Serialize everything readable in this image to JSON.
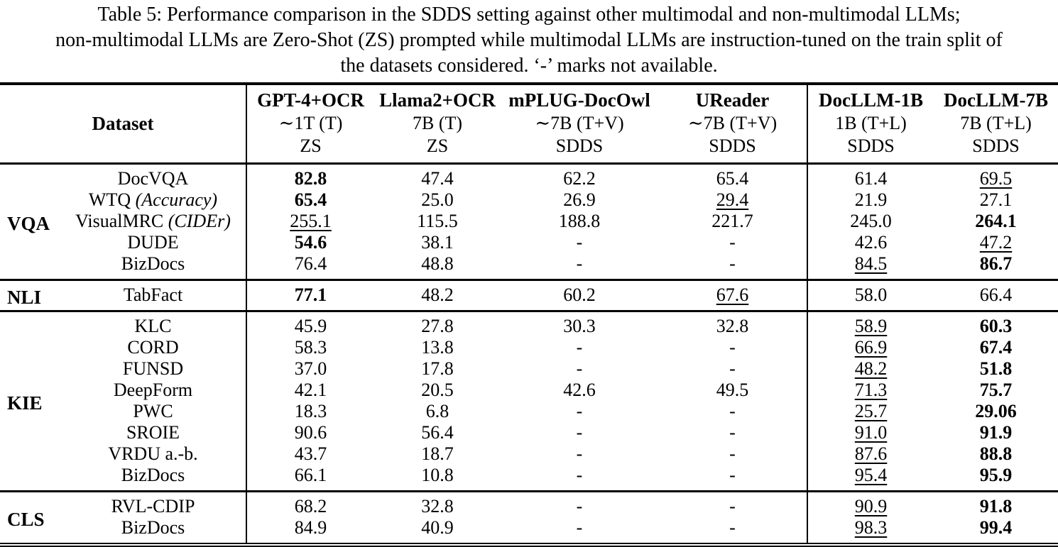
{
  "caption": {
    "lines": [
      "Table 5: Performance comparison in the SDDS setting against other multimodal and non-multimodal LLMs;",
      "non-multimodal LLMs are Zero-Shot (ZS) prompted while multimodal LLMs are instruction-tuned on the train split of",
      "the datasets considered. ‘-’ marks not available."
    ]
  },
  "colors": {
    "text": "#000000",
    "background": "#ffffff",
    "rule": "#000000"
  },
  "table": {
    "dataset_header": "Dataset",
    "columns": [
      {
        "model": "GPT-4+OCR",
        "params": "∼1T (T)",
        "setting": "ZS"
      },
      {
        "model": "Llama2+OCR",
        "params": "7B (T)",
        "setting": "ZS"
      },
      {
        "model": "mPLUG-DocOwl",
        "params": "∼7B (T+V)",
        "setting": "SDDS"
      },
      {
        "model": "UReader",
        "params": "∼7B (T+V)",
        "setting": "SDDS"
      },
      {
        "model": "DocLLM-1B",
        "params": "1B (T+L)",
        "setting": "SDDS"
      },
      {
        "model": "DocLLM-7B",
        "params": "7B (T+L)",
        "setting": "SDDS"
      }
    ],
    "sections": [
      {
        "group": "VQA",
        "rows": [
          {
            "dataset": "DocVQA",
            "note": "",
            "values": [
              {
                "v": "82.8",
                "f": "b"
              },
              {
                "v": "47.4",
                "f": ""
              },
              {
                "v": "62.2",
                "f": ""
              },
              {
                "v": "65.4",
                "f": ""
              },
              {
                "v": "61.4",
                "f": ""
              },
              {
                "v": "69.5",
                "f": "u"
              }
            ]
          },
          {
            "dataset": "WTQ",
            "note": "(Accuracy)",
            "values": [
              {
                "v": "65.4",
                "f": "b"
              },
              {
                "v": "25.0",
                "f": ""
              },
              {
                "v": "26.9",
                "f": ""
              },
              {
                "v": "29.4",
                "f": "u"
              },
              {
                "v": "21.9",
                "f": ""
              },
              {
                "v": "27.1",
                "f": ""
              }
            ]
          },
          {
            "dataset": "VisualMRC",
            "note": "(CIDEr)",
            "values": [
              {
                "v": "255.1",
                "f": "u"
              },
              {
                "v": "115.5",
                "f": ""
              },
              {
                "v": "188.8",
                "f": ""
              },
              {
                "v": "221.7",
                "f": ""
              },
              {
                "v": "245.0",
                "f": ""
              },
              {
                "v": "264.1",
                "f": "b"
              }
            ]
          },
          {
            "dataset": "DUDE",
            "note": "",
            "values": [
              {
                "v": "54.6",
                "f": "b"
              },
              {
                "v": "38.1",
                "f": ""
              },
              {
                "v": "-",
                "f": ""
              },
              {
                "v": "-",
                "f": ""
              },
              {
                "v": "42.6",
                "f": ""
              },
              {
                "v": "47.2",
                "f": "u"
              }
            ]
          },
          {
            "dataset": "BizDocs",
            "note": "",
            "values": [
              {
                "v": "76.4",
                "f": ""
              },
              {
                "v": "48.8",
                "f": ""
              },
              {
                "v": "-",
                "f": ""
              },
              {
                "v": "-",
                "f": ""
              },
              {
                "v": "84.5",
                "f": "u"
              },
              {
                "v": "86.7",
                "f": "b"
              }
            ]
          }
        ]
      },
      {
        "group": "NLI",
        "rows": [
          {
            "dataset": "TabFact",
            "note": "",
            "values": [
              {
                "v": "77.1",
                "f": "b"
              },
              {
                "v": "48.2",
                "f": ""
              },
              {
                "v": "60.2",
                "f": ""
              },
              {
                "v": "67.6",
                "f": "u"
              },
              {
                "v": "58.0",
                "f": ""
              },
              {
                "v": "66.4",
                "f": ""
              }
            ]
          }
        ]
      },
      {
        "group": "KIE",
        "rows": [
          {
            "dataset": "KLC",
            "note": "",
            "values": [
              {
                "v": "45.9",
                "f": ""
              },
              {
                "v": "27.8",
                "f": ""
              },
              {
                "v": "30.3",
                "f": ""
              },
              {
                "v": "32.8",
                "f": ""
              },
              {
                "v": "58.9",
                "f": "u"
              },
              {
                "v": "60.3",
                "f": "b"
              }
            ]
          },
          {
            "dataset": "CORD",
            "note": "",
            "values": [
              {
                "v": "58.3",
                "f": ""
              },
              {
                "v": "13.8",
                "f": ""
              },
              {
                "v": "-",
                "f": ""
              },
              {
                "v": "-",
                "f": ""
              },
              {
                "v": "66.9",
                "f": "u"
              },
              {
                "v": "67.4",
                "f": "b"
              }
            ]
          },
          {
            "dataset": "FUNSD",
            "note": "",
            "values": [
              {
                "v": "37.0",
                "f": ""
              },
              {
                "v": "17.8",
                "f": ""
              },
              {
                "v": "-",
                "f": ""
              },
              {
                "v": "-",
                "f": ""
              },
              {
                "v": "48.2",
                "f": "u"
              },
              {
                "v": "51.8",
                "f": "b"
              }
            ]
          },
          {
            "dataset": "DeepForm",
            "note": "",
            "values": [
              {
                "v": "42.1",
                "f": ""
              },
              {
                "v": "20.5",
                "f": ""
              },
              {
                "v": "42.6",
                "f": ""
              },
              {
                "v": "49.5",
                "f": ""
              },
              {
                "v": "71.3",
                "f": "u"
              },
              {
                "v": "75.7",
                "f": "b"
              }
            ]
          },
          {
            "dataset": "PWC",
            "note": "",
            "values": [
              {
                "v": "18.3",
                "f": ""
              },
              {
                "v": "6.8",
                "f": ""
              },
              {
                "v": "-",
                "f": ""
              },
              {
                "v": "-",
                "f": ""
              },
              {
                "v": "25.7",
                "f": "u"
              },
              {
                "v": "29.06",
                "f": "b"
              }
            ]
          },
          {
            "dataset": "SROIE",
            "note": "",
            "values": [
              {
                "v": "90.6",
                "f": ""
              },
              {
                "v": "56.4",
                "f": ""
              },
              {
                "v": "-",
                "f": ""
              },
              {
                "v": "-",
                "f": ""
              },
              {
                "v": "91.0",
                "f": "u"
              },
              {
                "v": "91.9",
                "f": "b"
              }
            ]
          },
          {
            "dataset": "VRDU a.-b.",
            "note": "",
            "values": [
              {
                "v": "43.7",
                "f": ""
              },
              {
                "v": "18.7",
                "f": ""
              },
              {
                "v": "-",
                "f": ""
              },
              {
                "v": "-",
                "f": ""
              },
              {
                "v": "87.6",
                "f": "u"
              },
              {
                "v": "88.8",
                "f": "b"
              }
            ]
          },
          {
            "dataset": "BizDocs",
            "note": "",
            "values": [
              {
                "v": "66.1",
                "f": ""
              },
              {
                "v": "10.8",
                "f": ""
              },
              {
                "v": "-",
                "f": ""
              },
              {
                "v": "-",
                "f": ""
              },
              {
                "v": "95.4",
                "f": "u"
              },
              {
                "v": "95.9",
                "f": "b"
              }
            ]
          }
        ]
      },
      {
        "group": "CLS",
        "rows": [
          {
            "dataset": "RVL-CDIP",
            "note": "",
            "values": [
              {
                "v": "68.2",
                "f": ""
              },
              {
                "v": "32.8",
                "f": ""
              },
              {
                "v": "-",
                "f": ""
              },
              {
                "v": "-",
                "f": ""
              },
              {
                "v": "90.9",
                "f": "u"
              },
              {
                "v": "91.8",
                "f": "b"
              }
            ]
          },
          {
            "dataset": "BizDocs",
            "note": "",
            "values": [
              {
                "v": "84.9",
                "f": ""
              },
              {
                "v": "40.9",
                "f": ""
              },
              {
                "v": "-",
                "f": ""
              },
              {
                "v": "-",
                "f": ""
              },
              {
                "v": "98.3",
                "f": "u"
              },
              {
                "v": "99.4",
                "f": "b"
              }
            ]
          }
        ]
      }
    ]
  }
}
